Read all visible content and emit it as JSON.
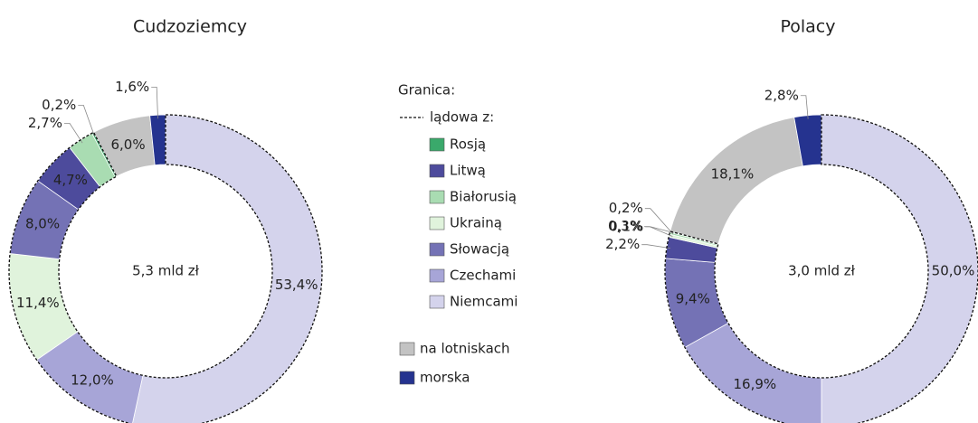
{
  "legend": {
    "title": "Granica:",
    "land": {
      "label": "lądowa z:",
      "items": [
        {
          "name": "Rosją",
          "color": "#3aa96b"
        },
        {
          "name": "Litwą",
          "color": "#4d4b9c"
        },
        {
          "name": "Białorusią",
          "color": "#a9dcb2"
        },
        {
          "name": "Ukrainą",
          "color": "#e0f3dc"
        },
        {
          "name": "Słowacją",
          "color": "#7472b5"
        },
        {
          "name": "Czechami",
          "color": "#a7a5d7"
        },
        {
          "name": "Niemcami",
          "color": "#d4d3ec"
        }
      ]
    },
    "other": [
      {
        "name": "na lotniskach",
        "color": "#c3c3c3"
      },
      {
        "name": "morska",
        "color": "#25338f"
      }
    ]
  },
  "chart_data": [
    {
      "type": "donut",
      "title": "Cudzoziemcy",
      "center_label": "5,3 mld zł",
      "categories": [
        "Niemcami",
        "Czechami",
        "Ukrainą",
        "Słowacją",
        "Litwą",
        "Białorusią",
        "Rosją",
        "na lotniskach",
        "morska"
      ],
      "values": [
        53.4,
        12.0,
        11.4,
        8.0,
        4.7,
        2.7,
        0.2,
        6.0,
        1.6
      ],
      "value_labels": [
        "53,4%",
        "12,0%",
        "11,4%",
        "8,0%",
        "4,7%",
        "2,7%",
        "0,2%",
        "6,0%",
        "1,6%"
      ]
    },
    {
      "type": "donut",
      "title": "Polacy",
      "center_label": "3,0 mld zł",
      "categories": [
        "Niemcami",
        "Czechami",
        "Słowacją",
        "Litwą",
        "Ukrainą",
        "Białorusią",
        "Rosją",
        "na lotniskach",
        "morska"
      ],
      "values": [
        50.0,
        16.9,
        9.4,
        2.2,
        0.3,
        0.2,
        0.1,
        18.1,
        2.8
      ],
      "value_labels": [
        "50,0%",
        "16,9%",
        "9,4%",
        "2,2%",
        "0,3%",
        "0,2%",
        "0,1%",
        "18,1%",
        "2,8%"
      ]
    }
  ]
}
